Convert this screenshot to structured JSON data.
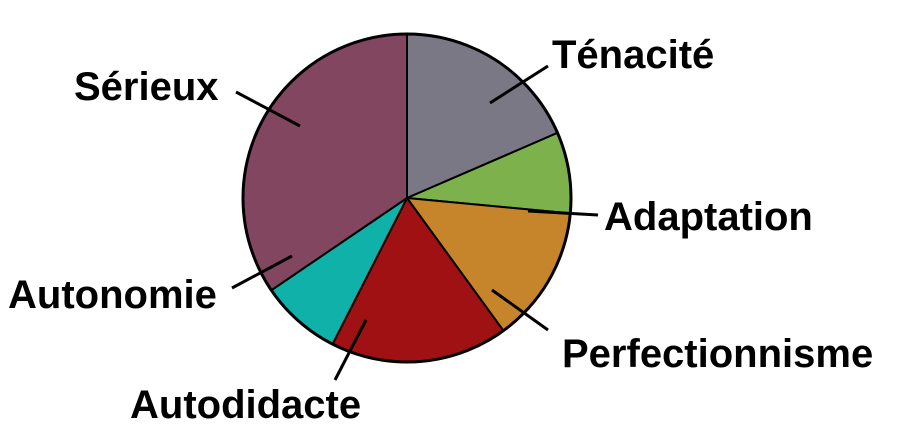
{
  "chart_data": {
    "type": "pie",
    "title": "",
    "slices": [
      {
        "label": "Ténacité",
        "value": 18.5,
        "color": "#7a7884"
      },
      {
        "label": "Adaptation",
        "value": 8.0,
        "color": "#7cb14c"
      },
      {
        "label": "Perfectionnisme",
        "value": 13.5,
        "color": "#c6852b"
      },
      {
        "label": "Autodidacte",
        "value": 17.5,
        "color": "#a01113"
      },
      {
        "label": "Autonomie",
        "value": 8.0,
        "color": "#0fb1a8"
      },
      {
        "label": "Sérieux",
        "value": 34.5,
        "color": "#834660"
      }
    ],
    "start_angle_deg": 0,
    "direction": "clockwise",
    "legend": "none"
  }
}
